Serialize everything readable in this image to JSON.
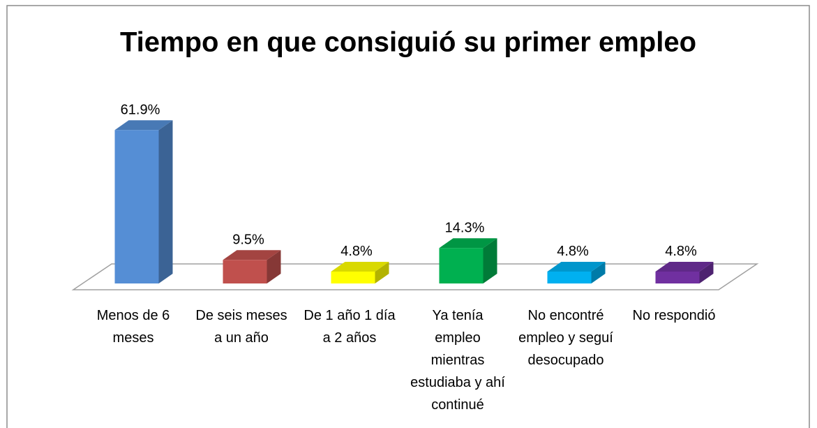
{
  "chart_data": {
    "type": "bar3d",
    "title": "Tiempo en que consiguió su primer empleo",
    "categories": [
      "Menos de 6 meses",
      "De seis meses a un año",
      "De 1 año 1 día a 2 años",
      "Ya tenía empleo mientras estudiaba y ahí continué",
      "No encontré empleo y seguí desocupado",
      "No respondió"
    ],
    "values": [
      61.9,
      9.5,
      4.8,
      14.3,
      4.8,
      4.8
    ],
    "value_labels": [
      "61.9%",
      "9.5%",
      "4.8%",
      "14.3%",
      "4.8%",
      "4.8%"
    ],
    "colors": [
      "#558ed5",
      "#c0504d",
      "#ffff00",
      "#00b050",
      "#00b0f0",
      "#7030a0"
    ]
  }
}
